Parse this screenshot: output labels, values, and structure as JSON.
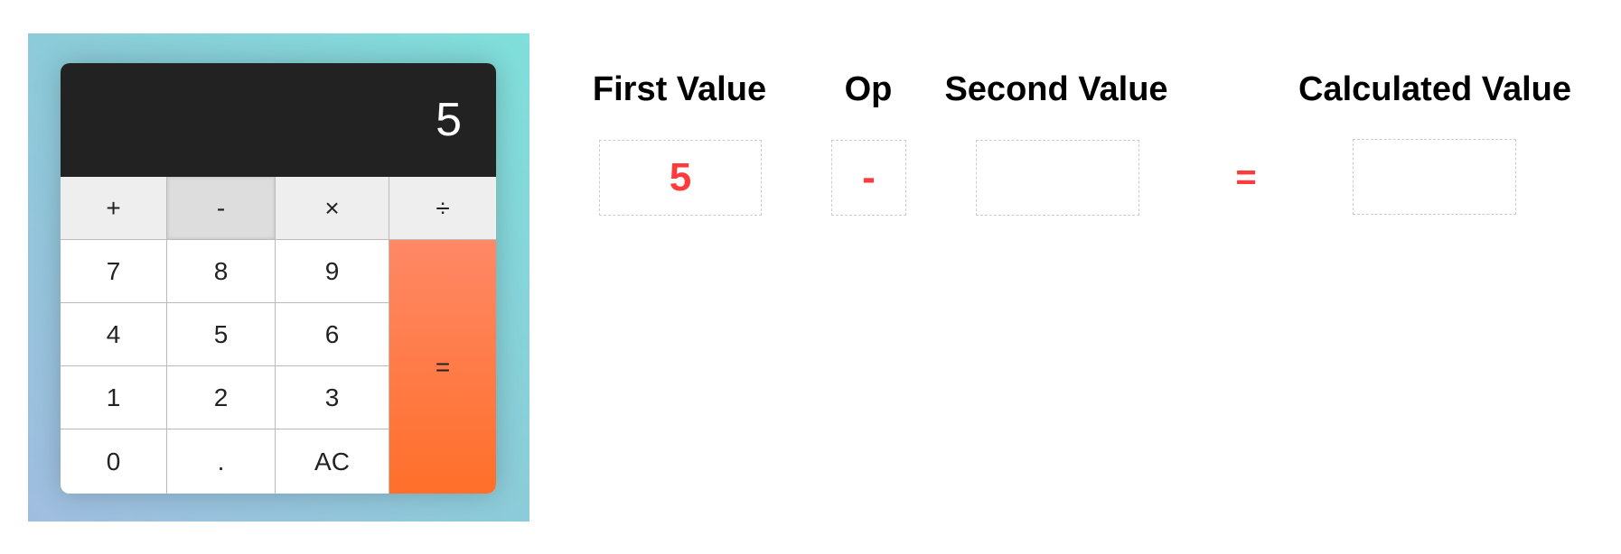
{
  "calculator": {
    "display": "5",
    "operators": [
      "+",
      "-",
      "×",
      "÷"
    ],
    "active_operator": "-",
    "digits": [
      [
        "7",
        "8",
        "9"
      ],
      [
        "4",
        "5",
        "6"
      ],
      [
        "1",
        "2",
        "3"
      ],
      [
        "0",
        ".",
        "AC"
      ]
    ],
    "equals": "=",
    "equals_color": "#ff7a3d"
  },
  "panel": {
    "headings": {
      "first": "First Value",
      "op": "Op",
      "second": "Second Value",
      "calculated": "Calculated Value"
    },
    "first_value": "5",
    "op_value": "-",
    "second_value": "",
    "equals": "=",
    "calculated_value": "",
    "accent_color": "#ff3b3b"
  }
}
